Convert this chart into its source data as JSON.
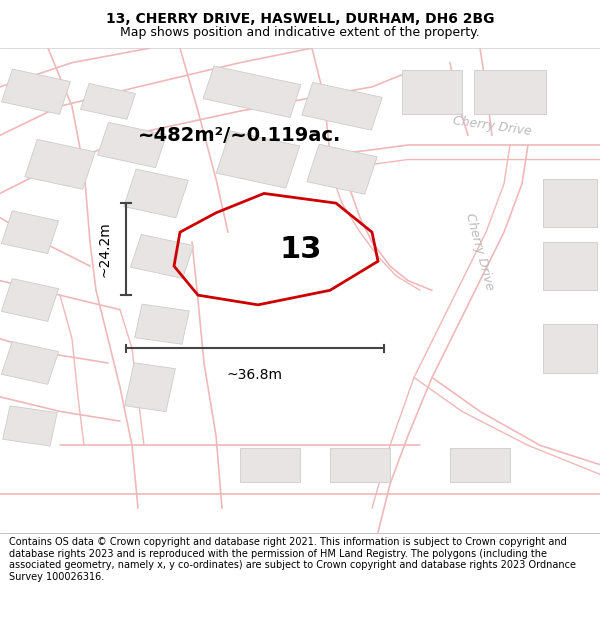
{
  "title": "13, CHERRY DRIVE, HASWELL, DURHAM, DH6 2BG",
  "subtitle": "Map shows position and indicative extent of the property.",
  "footer": "Contains OS data © Crown copyright and database right 2021. This information is subject to Crown copyright and database rights 2023 and is reproduced with the permission of HM Land Registry. The polygons (including the associated geometry, namely x, y co-ordinates) are subject to Crown copyright and database rights 2023 Ordnance Survey 100026316.",
  "area_label": "~482m²/~0.119ac.",
  "number_label": "13",
  "width_label": "~36.8m",
  "height_label": "~24.2m",
  "road_line_color": "#f0b8b8",
  "building_color": "#e8e4e4",
  "building_edge": "#cccccc",
  "plot_color": "#cc0000",
  "map_bg": "#ffffff",
  "dim_color": "#444444",
  "cherry_drive_color": "#bbbbbb",
  "title_fontsize": 10,
  "subtitle_fontsize": 9,
  "area_fontsize": 14,
  "number_fontsize": 22,
  "dim_fontsize": 10,
  "footer_fontsize": 7
}
